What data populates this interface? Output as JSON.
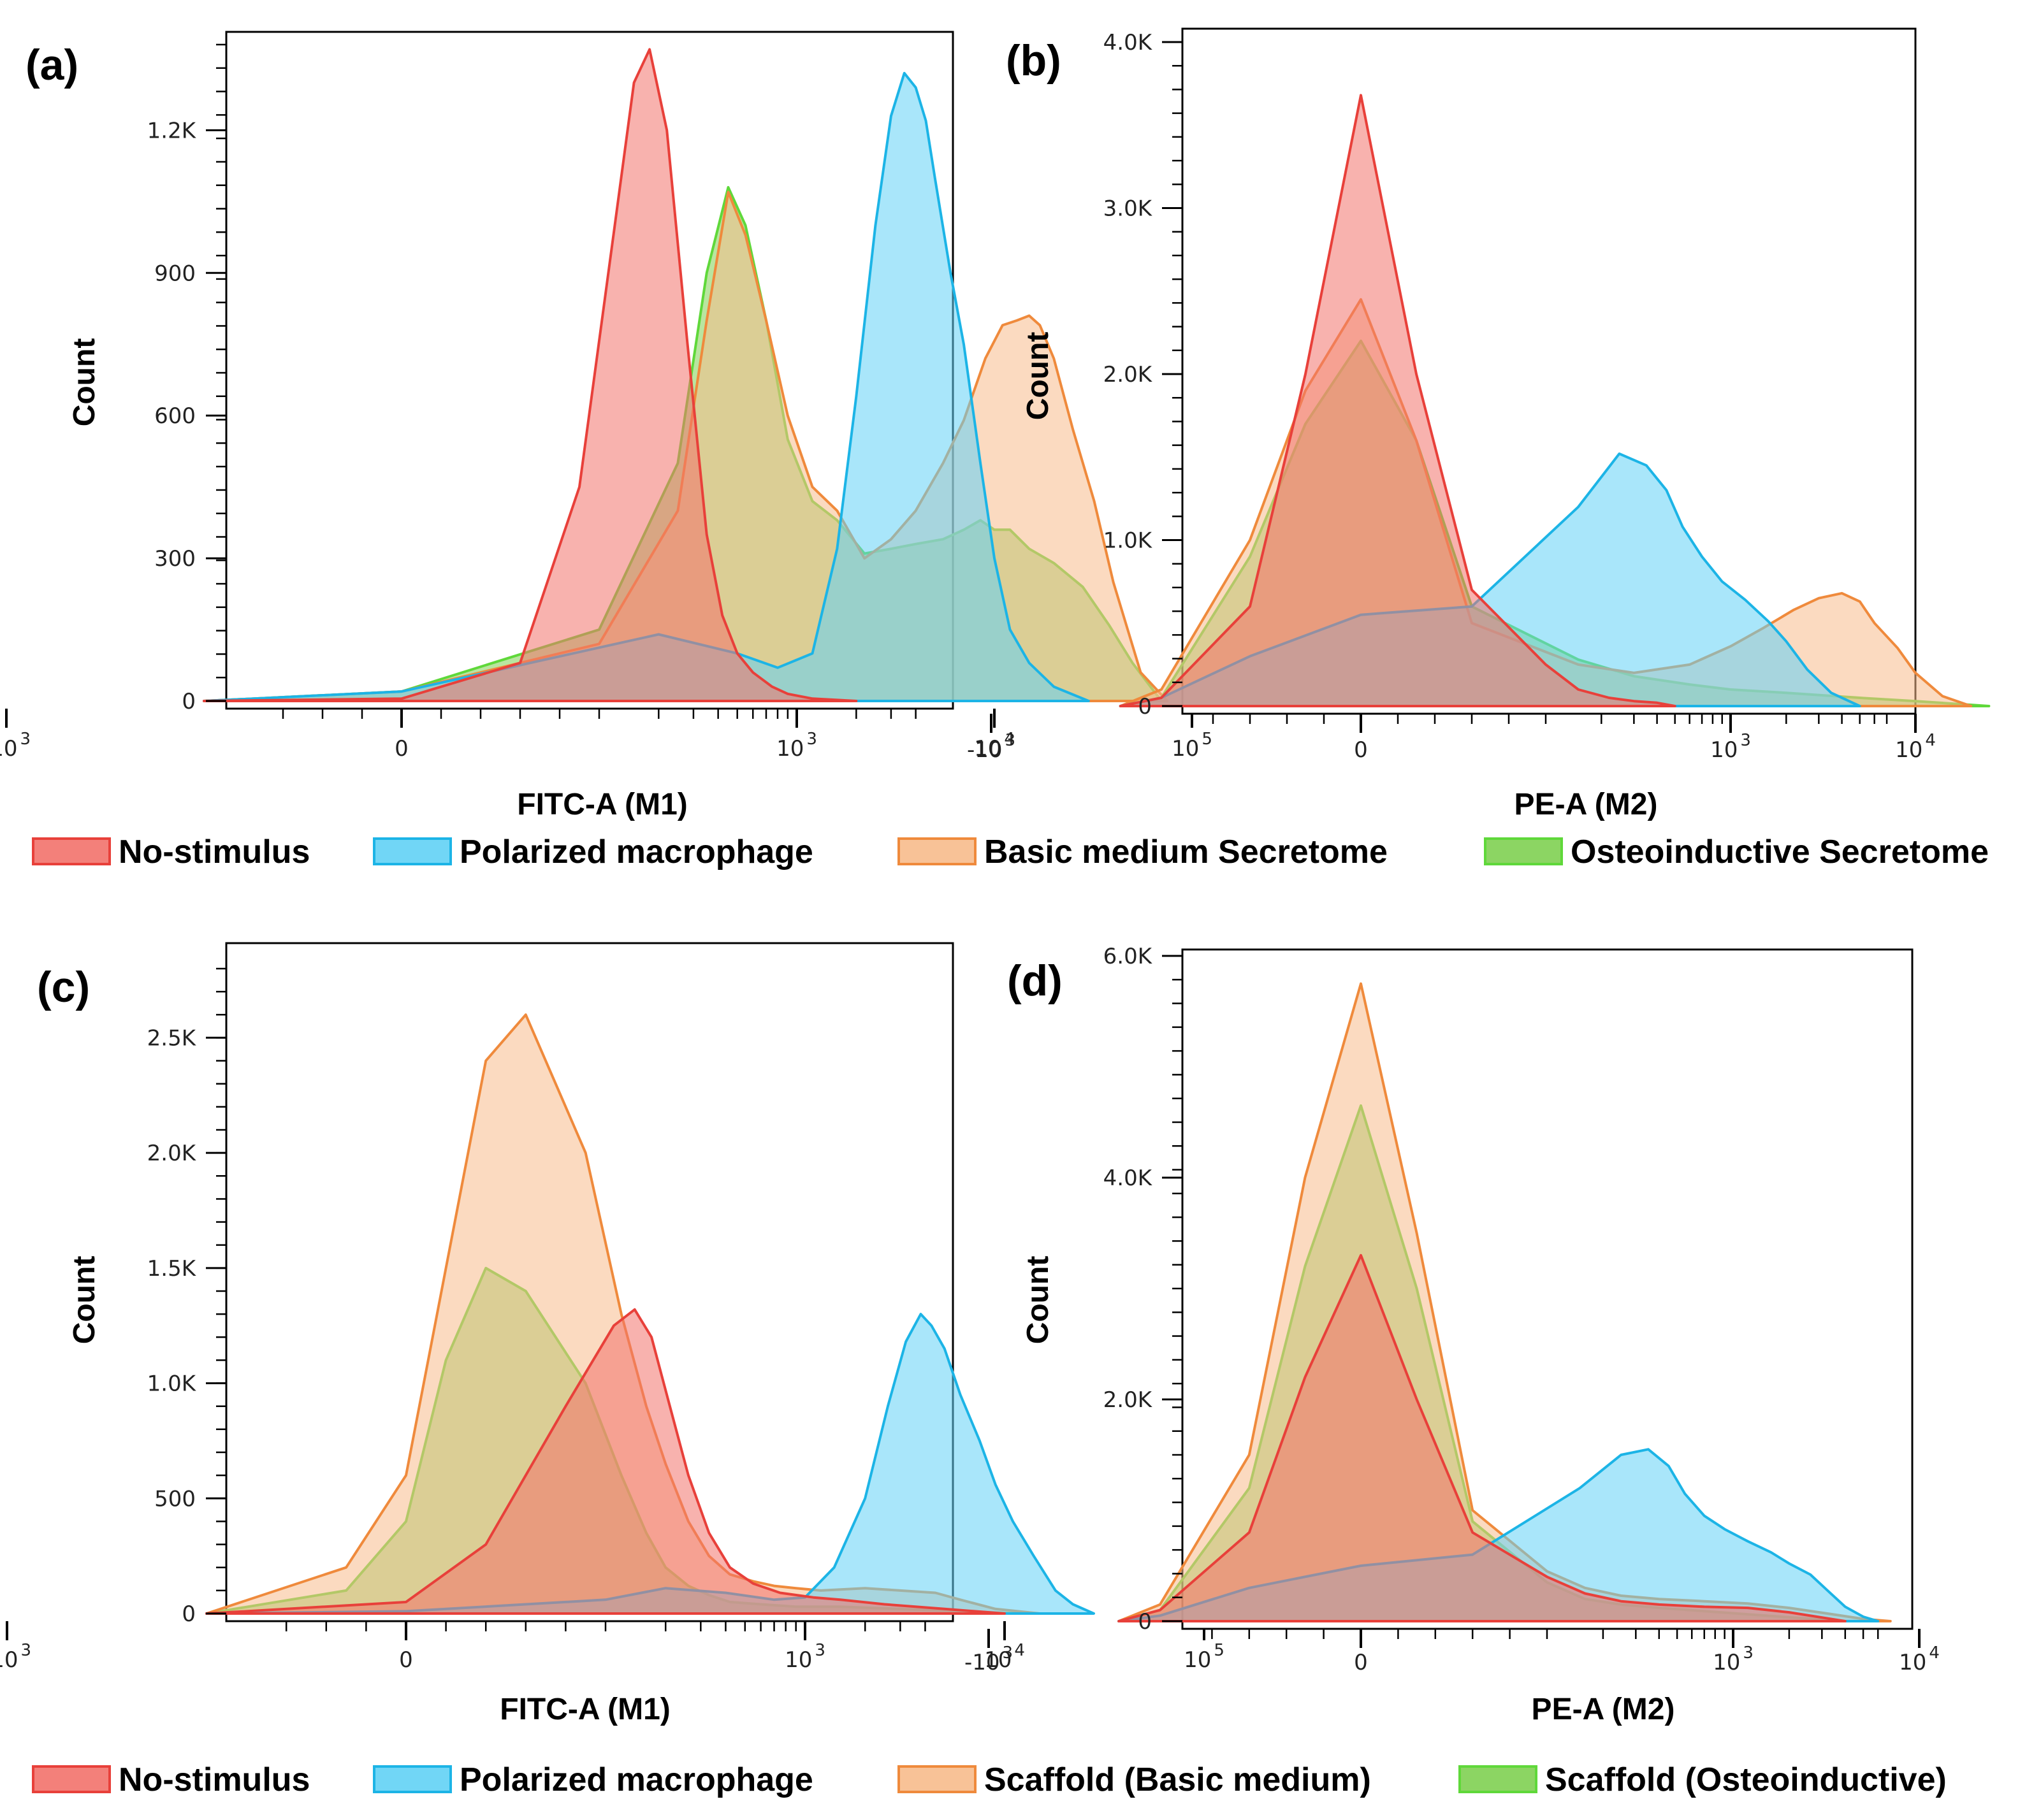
{
  "legends": [
    {
      "items": [
        {
          "label": "No-stimulus",
          "color": "red"
        },
        {
          "label": "Polarized macrophage",
          "color": "blue"
        },
        {
          "label": "Basic medium Secretome",
          "color": "orange"
        },
        {
          "label": "Osteoinductive Secretome",
          "color": "green"
        }
      ]
    },
    {
      "items": [
        {
          "label": "No-stimulus",
          "color": "red"
        },
        {
          "label": "Polarized macrophage",
          "color": "blue"
        },
        {
          "label": "Scaffold (Basic medium)",
          "color": "orange"
        },
        {
          "label": "Scaffold (Osteoinductive)",
          "color": "green"
        }
      ]
    }
  ],
  "colors": {
    "red": {
      "stroke": "#e8403a",
      "fill": "#f2726b"
    },
    "blue": {
      "stroke": "#1cb4e6",
      "fill": "#62d2f5"
    },
    "orange": {
      "stroke": "#ef8a3c",
      "fill": "#f7bb8c"
    },
    "green": {
      "stroke": "#5fd83a",
      "fill": "#7fd052"
    }
  },
  "chart_data": [
    {
      "panel": "(a)",
      "type": "area",
      "xlabel": "FITC-A (M1)",
      "ylabel": "Count",
      "x_scale": "biexponential",
      "ylim": [
        0,
        1380
      ],
      "y_ticks": [
        {
          "v": 0,
          "label": "0"
        },
        {
          "v": 300,
          "label": "300"
        },
        {
          "v": 600,
          "label": "600"
        },
        {
          "v": 900,
          "label": "900"
        },
        {
          "v": 1200,
          "label": "1.2K"
        }
      ],
      "x_ticks": [
        {
          "v": -1000,
          "base": "-10",
          "exp": "3"
        },
        {
          "v": 0,
          "base": "0",
          "exp": ""
        },
        {
          "v": 1000,
          "base": "10",
          "exp": "3"
        },
        {
          "v": 10000,
          "base": "10",
          "exp": "4"
        },
        {
          "v": 100000,
          "base": "10",
          "exp": "5"
        }
      ],
      "series": [
        {
          "color": "red",
          "x": [
            -100,
            0,
            60,
            90,
            120,
            150,
            180,
            220,
            280,
            350,
            420,
            500,
            600,
            750,
            900,
            1200,
            2000
          ],
          "y": [
            0,
            5,
            80,
            450,
            1000,
            1300,
            1370,
            1200,
            750,
            350,
            180,
            100,
            60,
            30,
            15,
            5,
            0
          ]
        },
        {
          "color": "blue",
          "x": [
            -100,
            0,
            200,
            500,
            800,
            1200,
            1600,
            2000,
            2500,
            3000,
            3500,
            4000,
            4500,
            5000,
            6000,
            7000,
            8500,
            10000,
            12000,
            15000,
            20000,
            30000
          ],
          "y": [
            0,
            20,
            140,
            100,
            70,
            100,
            320,
            640,
            1000,
            1230,
            1320,
            1290,
            1220,
            1100,
            900,
            750,
            500,
            300,
            150,
            80,
            30,
            0
          ]
        },
        {
          "color": "orange",
          "x": [
            -100,
            0,
            100,
            250,
            350,
            450,
            550,
            700,
            900,
            1200,
            1600,
            2200,
            3000,
            4000,
            5500,
            7000,
            9000,
            11000,
            13000,
            15000,
            17000,
            20000,
            25000,
            32000,
            40000,
            55000,
            75000
          ],
          "y": [
            0,
            20,
            120,
            400,
            800,
            1070,
            980,
            800,
            600,
            450,
            400,
            300,
            340,
            400,
            500,
            590,
            720,
            790,
            800,
            810,
            790,
            720,
            570,
            420,
            250,
            60,
            0
          ]
        },
        {
          "color": "green",
          "x": [
            -100,
            0,
            100,
            250,
            350,
            450,
            550,
            700,
            900,
            1200,
            1600,
            2200,
            3000,
            4000,
            5500,
            7000,
            8500,
            10000,
            12000,
            15000,
            20000,
            28000,
            38000,
            50000,
            70000
          ],
          "y": [
            0,
            20,
            150,
            500,
            900,
            1080,
            1000,
            800,
            550,
            420,
            380,
            310,
            320,
            330,
            340,
            360,
            380,
            360,
            360,
            320,
            290,
            240,
            160,
            80,
            0
          ]
        }
      ]
    },
    {
      "panel": "(b)",
      "type": "area",
      "xlabel": "PE-A (M2)",
      "ylabel": "Count",
      "x_scale": "biexponential",
      "ylim": [
        0,
        4000
      ],
      "y_ticks": [
        {
          "v": 0,
          "label": "0"
        },
        {
          "v": 1000,
          "label": "1.0K"
        },
        {
          "v": 2000,
          "label": "2.0K"
        },
        {
          "v": 3000,
          "label": "3.0K"
        },
        {
          "v": 4000,
          "label": "4.0K"
        }
      ],
      "x_ticks": [
        {
          "v": -1000,
          "base": "-10",
          "exp": "3"
        },
        {
          "v": 0,
          "base": "0",
          "exp": ""
        },
        {
          "v": 1000,
          "base": "10",
          "exp": "3"
        },
        {
          "v": 10000,
          "base": "10",
          "exp": "4"
        },
        {
          "v": 100000,
          "base": "10",
          "exp": "5"
        }
      ],
      "series": [
        {
          "color": "red",
          "x": [
            -200,
            -120,
            -60,
            -30,
            0,
            30,
            60,
            100,
            150,
            220,
            300,
            400,
            500
          ],
          "y": [
            0,
            50,
            600,
            2000,
            3680,
            2000,
            700,
            250,
            100,
            50,
            30,
            20,
            0
          ]
        },
        {
          "color": "blue",
          "x": [
            -200,
            -120,
            -60,
            0,
            60,
            150,
            250,
            350,
            450,
            550,
            700,
            900,
            1200,
            1600,
            2000,
            2600,
            3500,
            5000
          ],
          "y": [
            0,
            50,
            300,
            550,
            600,
            1200,
            1520,
            1450,
            1300,
            1080,
            900,
            750,
            640,
            510,
            390,
            220,
            80,
            0
          ]
        },
        {
          "color": "orange",
          "x": [
            -200,
            -120,
            -60,
            -30,
            0,
            30,
            60,
            150,
            300,
            600,
            1000,
            1500,
            2200,
            3000,
            4000,
            5000,
            6000,
            8000,
            10000,
            14000,
            20000
          ],
          "y": [
            0,
            100,
            1000,
            1900,
            2450,
            1600,
            500,
            250,
            200,
            250,
            360,
            470,
            580,
            650,
            680,
            630,
            500,
            350,
            200,
            60,
            0
          ]
        },
        {
          "color": "green",
          "x": [
            -200,
            -120,
            -60,
            -30,
            0,
            30,
            60,
            150,
            300,
            600,
            1000,
            2000,
            5000,
            10000,
            25000
          ],
          "y": [
            0,
            50,
            900,
            1700,
            2200,
            1600,
            600,
            280,
            180,
            130,
            100,
            80,
            50,
            30,
            0
          ]
        }
      ]
    },
    {
      "panel": "(c)",
      "type": "area",
      "xlabel": "FITC-A (M1)",
      "ylabel": "Count",
      "x_scale": "biexponential",
      "ylim": [
        0,
        2800
      ],
      "y_ticks": [
        {
          "v": 0,
          "label": "0"
        },
        {
          "v": 500,
          "label": "500"
        },
        {
          "v": 1000,
          "label": "1.0K"
        },
        {
          "v": 1500,
          "label": "1.5K"
        },
        {
          "v": 2000,
          "label": "2.0K"
        },
        {
          "v": 2500,
          "label": "2.5K"
        }
      ],
      "x_ticks": [
        {
          "v": -1000,
          "base": "-10",
          "exp": "3"
        },
        {
          "v": 0,
          "base": "0",
          "exp": ""
        },
        {
          "v": 1000,
          "base": "10",
          "exp": "3"
        },
        {
          "v": 10000,
          "base": "10",
          "exp": "4"
        },
        {
          "v": 100000,
          "base": "10",
          "exp": "5"
        }
      ],
      "series": [
        {
          "color": "red",
          "x": [
            -100,
            0,
            40,
            80,
            110,
            140,
            170,
            210,
            260,
            330,
            420,
            550,
            750,
            1100,
            1500,
            2500,
            5000,
            10000
          ],
          "y": [
            0,
            50,
            300,
            900,
            1250,
            1320,
            1200,
            900,
            600,
            350,
            200,
            130,
            90,
            70,
            60,
            40,
            20,
            0
          ]
        },
        {
          "color": "blue",
          "x": [
            -100,
            0,
            100,
            200,
            400,
            700,
            1000,
            1400,
            2000,
            2600,
            3200,
            3800,
            4300,
            5000,
            6000,
            7500,
            9000,
            11000,
            14000,
            18000,
            22000,
            28000
          ],
          "y": [
            0,
            10,
            60,
            110,
            90,
            60,
            70,
            200,
            500,
            900,
            1180,
            1300,
            1250,
            1150,
            950,
            750,
            560,
            400,
            250,
            100,
            40,
            0
          ]
        },
        {
          "color": "orange",
          "x": [
            -100,
            -30,
            0,
            20,
            40,
            60,
            90,
            120,
            160,
            200,
            260,
            330,
            420,
            550,
            700,
            900,
            1200,
            2000,
            3000,
            4500,
            6000,
            9000,
            15000
          ],
          "y": [
            0,
            200,
            600,
            1500,
            2400,
            2600,
            2000,
            1300,
            900,
            650,
            400,
            250,
            170,
            140,
            120,
            110,
            100,
            110,
            100,
            90,
            60,
            20,
            0
          ]
        },
        {
          "color": "green",
          "x": [
            -100,
            -30,
            0,
            20,
            40,
            60,
            90,
            120,
            160,
            200,
            260,
            330,
            420,
            600,
            900,
            1500,
            3000,
            6000,
            12000
          ],
          "y": [
            0,
            100,
            400,
            1100,
            1500,
            1400,
            1000,
            600,
            350,
            200,
            120,
            80,
            50,
            40,
            30,
            30,
            20,
            10,
            0
          ]
        }
      ]
    },
    {
      "panel": "(d)",
      "type": "area",
      "xlabel": "PE-A (M2)",
      "ylabel": "Count",
      "x_scale": "biexponential",
      "ylim": [
        0,
        6000
      ],
      "y_ticks": [
        {
          "v": 0,
          "label": "0"
        },
        {
          "v": 2000,
          "label": "2.0K"
        },
        {
          "v": 4000,
          "label": "4.0K"
        },
        {
          "v": 6000,
          "label": "6.0K"
        }
      ],
      "x_ticks": [
        {
          "v": -1000,
          "base": "-10",
          "exp": "3"
        },
        {
          "v": 0,
          "base": "0",
          "exp": ""
        },
        {
          "v": 1000,
          "base": "10",
          "exp": "3"
        },
        {
          "v": 10000,
          "base": "10",
          "exp": "4"
        },
        {
          "v": 100000,
          "base": "10",
          "exp": "5"
        }
      ],
      "series": [
        {
          "color": "red",
          "x": [
            -200,
            -120,
            -60,
            -30,
            0,
            30,
            60,
            100,
            160,
            250,
            400,
            700,
            1200,
            2000,
            4000
          ],
          "y": [
            0,
            100,
            800,
            2200,
            3300,
            2000,
            800,
            400,
            250,
            180,
            150,
            130,
            120,
            80,
            0
          ]
        },
        {
          "color": "blue",
          "x": [
            -200,
            -120,
            -60,
            0,
            60,
            150,
            250,
            350,
            450,
            550,
            700,
            900,
            1200,
            1600,
            2000,
            2600,
            3200,
            4000,
            5000,
            6000
          ],
          "y": [
            0,
            50,
            300,
            500,
            600,
            1200,
            1500,
            1550,
            1400,
            1150,
            950,
            830,
            720,
            620,
            520,
            420,
            280,
            130,
            40,
            0
          ]
        },
        {
          "color": "orange",
          "x": [
            -200,
            -120,
            -60,
            -30,
            0,
            30,
            60,
            100,
            160,
            250,
            400,
            700,
            1200,
            2000,
            3500,
            5000,
            7000
          ],
          "y": [
            0,
            150,
            1500,
            4000,
            5750,
            3500,
            1000,
            450,
            300,
            230,
            200,
            180,
            160,
            120,
            60,
            20,
            0
          ]
        },
        {
          "color": "green",
          "x": [
            -200,
            -120,
            -60,
            -30,
            0,
            30,
            60,
            100,
            160,
            250,
            400,
            700,
            1500,
            4000
          ],
          "y": [
            0,
            100,
            1200,
            3200,
            4650,
            3000,
            900,
            350,
            200,
            150,
            120,
            90,
            50,
            0
          ]
        }
      ]
    }
  ]
}
